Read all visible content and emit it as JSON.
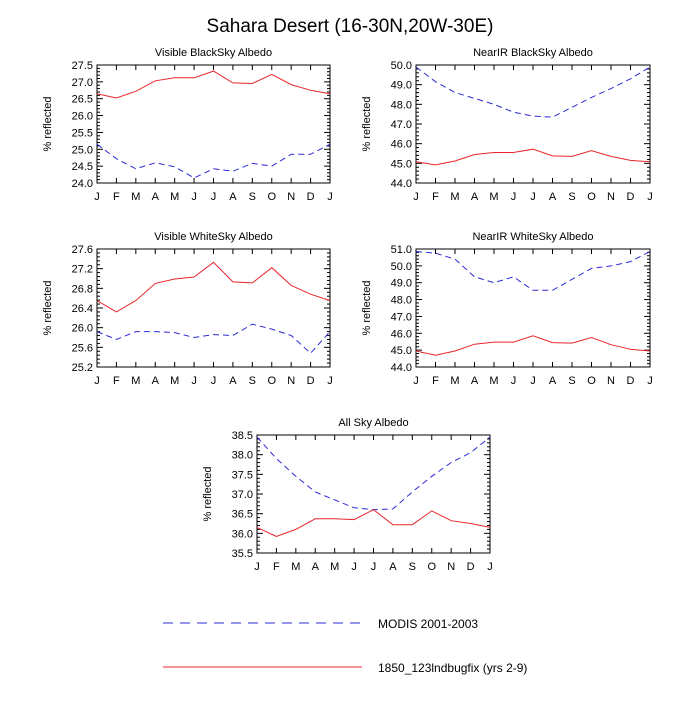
{
  "title": "Sahara Desert (16-30N,20W-30E)",
  "legend": {
    "position": "bottom",
    "entries": [
      {
        "label": "MODIS 2001-2003",
        "color": "#2b2bd6",
        "style": "dashed"
      },
      {
        "label": "1850_123lndbugfix (yrs 2-9)",
        "color": "#e8262b",
        "style": "solid"
      }
    ]
  },
  "chart_data": [
    {
      "type": "line",
      "title": "Visible BlackSky Albedo",
      "ylabel": "% reflected",
      "x": [
        "J",
        "F",
        "M",
        "A",
        "M",
        "J",
        "J",
        "A",
        "S",
        "O",
        "N",
        "D",
        "J"
      ],
      "ylim": [
        24.0,
        27.5
      ],
      "yticks": [
        "24.0",
        "24.5",
        "25.0",
        "25.5",
        "26.0",
        "26.5",
        "27.0",
        "27.5"
      ],
      "series": [
        {
          "name": "MODIS 2001-2003",
          "values": [
            25.15,
            24.72,
            24.42,
            24.6,
            24.48,
            24.15,
            24.42,
            24.35,
            24.58,
            24.5,
            24.85,
            24.85,
            25.15
          ]
        },
        {
          "name": "1850_123lndbugfix (yrs 2-9)",
          "values": [
            26.65,
            26.52,
            26.72,
            27.03,
            27.12,
            27.12,
            27.32,
            26.97,
            26.95,
            27.22,
            26.92,
            26.75,
            26.65
          ]
        }
      ]
    },
    {
      "type": "line",
      "title": "NearIR BlackSky Albedo",
      "ylabel": "% reflected",
      "x": [
        "J",
        "F",
        "M",
        "A",
        "M",
        "J",
        "J",
        "A",
        "S",
        "O",
        "N",
        "D",
        "J"
      ],
      "ylim": [
        44.0,
        50.0
      ],
      "yticks": [
        "44.0",
        "45.0",
        "46.0",
        "47.0",
        "48.0",
        "49.0",
        "50.0"
      ],
      "series": [
        {
          "name": "MODIS 2001-2003",
          "values": [
            49.9,
            49.15,
            48.6,
            48.3,
            48.0,
            47.6,
            47.4,
            47.35,
            47.85,
            48.35,
            48.8,
            49.3,
            49.9
          ]
        },
        {
          "name": "1850_123lndbugfix (yrs 2-9)",
          "values": [
            45.08,
            44.92,
            45.12,
            45.45,
            45.55,
            45.55,
            45.72,
            45.38,
            45.35,
            45.65,
            45.35,
            45.15,
            45.08
          ]
        }
      ]
    },
    {
      "type": "line",
      "title": "Visible WhiteSky Albedo",
      "ylabel": "% reflected",
      "x": [
        "J",
        "F",
        "M",
        "A",
        "M",
        "J",
        "J",
        "A",
        "S",
        "O",
        "N",
        "D",
        "J"
      ],
      "ylim": [
        25.2,
        27.6
      ],
      "yticks": [
        "25.2",
        "25.6",
        "26.0",
        "26.4",
        "26.8",
        "27.2",
        "27.6"
      ],
      "series": [
        {
          "name": "MODIS 2001-2003",
          "values": [
            25.92,
            25.76,
            25.92,
            25.92,
            25.9,
            25.8,
            25.86,
            25.84,
            26.07,
            25.97,
            25.84,
            25.48,
            25.92
          ]
        },
        {
          "name": "1850_123lndbugfix (yrs 2-9)",
          "values": [
            26.55,
            26.32,
            26.55,
            26.9,
            26.99,
            27.03,
            27.33,
            26.93,
            26.91,
            27.22,
            26.86,
            26.68,
            26.55
          ]
        }
      ]
    },
    {
      "type": "line",
      "title": "NearIR WhiteSky Albedo",
      "ylabel": "% reflected",
      "x": [
        "J",
        "F",
        "M",
        "A",
        "M",
        "J",
        "J",
        "A",
        "S",
        "O",
        "N",
        "D",
        "J"
      ],
      "ylim": [
        44.0,
        51.0
      ],
      "yticks": [
        "44.0",
        "45.0",
        "46.0",
        "47.0",
        "48.0",
        "49.0",
        "50.0",
        "51.0"
      ],
      "series": [
        {
          "name": "MODIS 2001-2003",
          "values": [
            50.85,
            50.75,
            50.4,
            49.35,
            49.0,
            49.35,
            48.55,
            48.55,
            49.2,
            49.85,
            50.0,
            50.25,
            50.85
          ]
        },
        {
          "name": "1850_123lndbugfix (yrs 2-9)",
          "values": [
            44.95,
            44.7,
            44.95,
            45.35,
            45.48,
            45.48,
            45.85,
            45.45,
            45.42,
            45.75,
            45.32,
            45.05,
            44.95
          ]
        }
      ]
    },
    {
      "type": "line",
      "title": "All Sky Albedo",
      "ylabel": "% reflected",
      "x": [
        "J",
        "F",
        "M",
        "A",
        "M",
        "J",
        "J",
        "A",
        "S",
        "O",
        "N",
        "D",
        "J"
      ],
      "ylim": [
        35.5,
        38.5
      ],
      "yticks": [
        "35.5",
        "36.0",
        "36.5",
        "37.0",
        "37.5",
        "38.0",
        "38.5"
      ],
      "series": [
        {
          "name": "MODIS 2001-2003",
          "values": [
            38.45,
            37.9,
            37.45,
            37.05,
            36.85,
            36.65,
            36.6,
            36.62,
            37.05,
            37.45,
            37.8,
            38.05,
            38.45
          ]
        },
        {
          "name": "1850_123lndbugfix (yrs 2-9)",
          "values": [
            36.15,
            35.92,
            36.1,
            36.37,
            36.37,
            36.35,
            36.6,
            36.22,
            36.22,
            36.57,
            36.32,
            36.25,
            36.15
          ]
        }
      ]
    }
  ]
}
